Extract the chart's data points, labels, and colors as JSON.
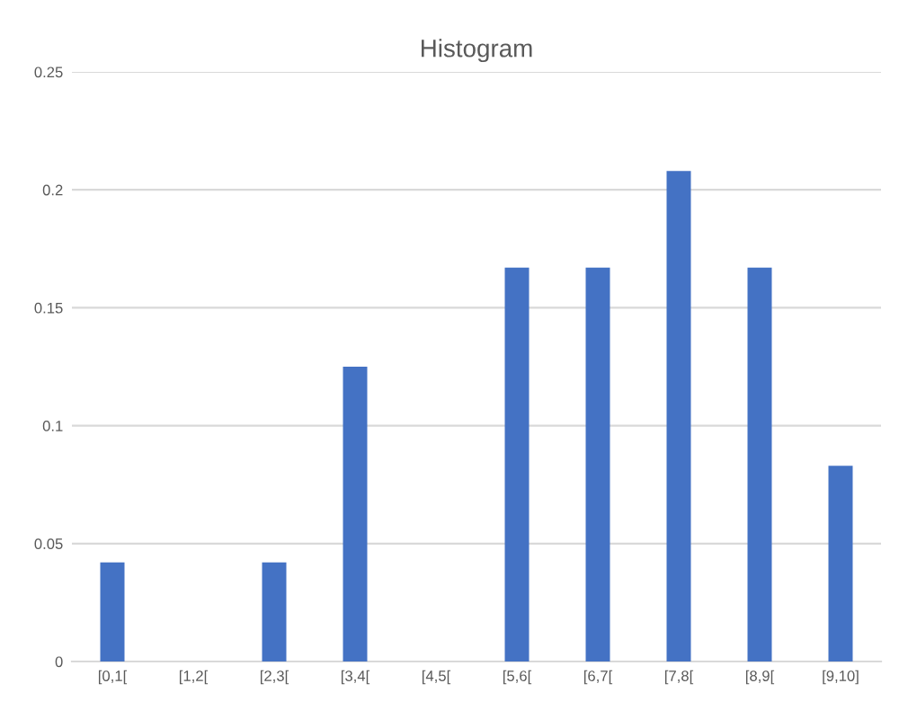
{
  "chart_data": {
    "type": "bar",
    "title": "Histogram",
    "categories": [
      "[0,1[",
      "[1,2[",
      "[2,3[",
      "[3,4[",
      "[4,5[",
      "[5,6[",
      "[6,7[",
      "[7,8[",
      "[8,9[",
      "[9,10]"
    ],
    "values": [
      0.042,
      0,
      0.042,
      0.125,
      0,
      0.167,
      0.167,
      0.208,
      0.167,
      0.083
    ],
    "color": "#4472c4",
    "ylim": [
      0,
      0.25
    ],
    "yticks": [
      {
        "value": 0,
        "label": "0"
      },
      0.05,
      0.1,
      0.15,
      0.2,
      0.25
    ],
    "grid": "y"
  }
}
